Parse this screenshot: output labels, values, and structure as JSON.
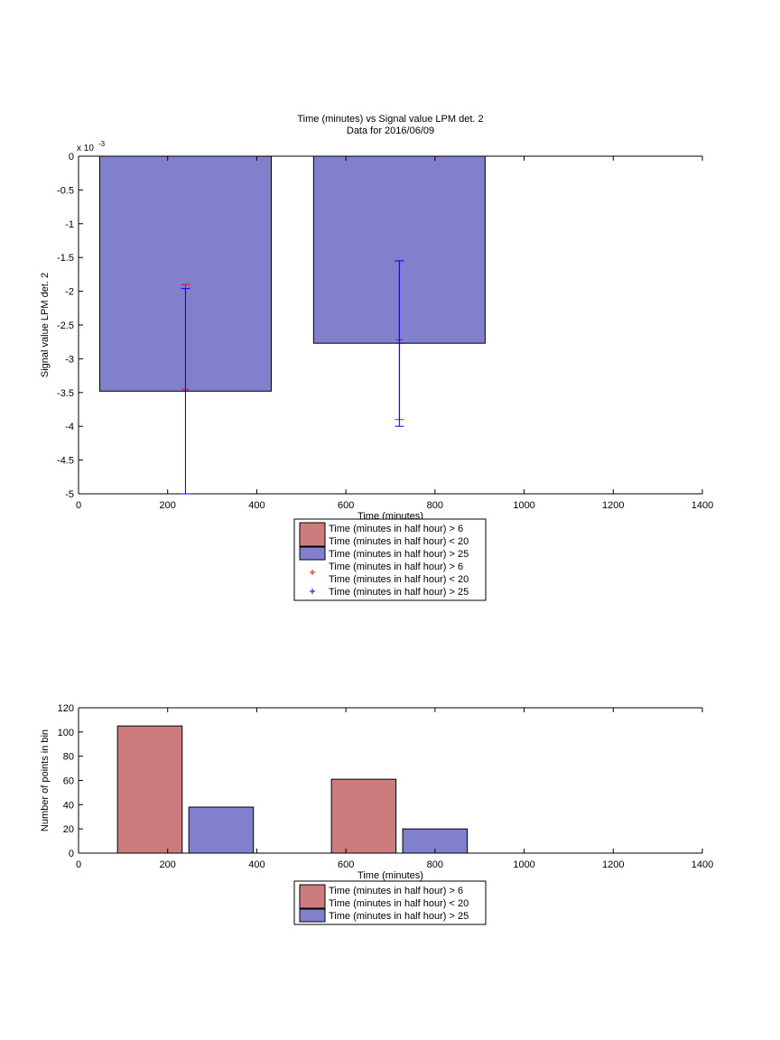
{
  "chart_data": [
    {
      "type": "bar",
      "title": "Time (minutes) vs Signal value LPM det. 2",
      "subtitle": "Data for 2016/06/09",
      "xlabel": "Time (minutes)",
      "ylabel": "Signal value LPM det. 2",
      "y_exponent_label": "x 10",
      "y_exponent_power": "-3",
      "xlim": [
        0,
        1400
      ],
      "ylim": [
        -0.005,
        0
      ],
      "x_ticks": [
        0,
        200,
        400,
        600,
        800,
        1000,
        1200,
        1400
      ],
      "y_ticks": [
        0,
        -0.0005,
        -0.001,
        -0.0015,
        -0.002,
        -0.0025,
        -0.003,
        -0.0035,
        -0.004,
        -0.0045,
        -0.005
      ],
      "y_tick_labels": [
        "0",
        "-0.5",
        "-1",
        "-1.5",
        "-2",
        "-2.5",
        "-3",
        "-3.5",
        "-4",
        "-4.5",
        "-5"
      ],
      "grid": false,
      "legend_position": "bottom-center",
      "series": [
        {
          "name": "Time (minutes in half hour) > 6\nTime (minutes in half hour) < 20",
          "color": "#cc7c7c",
          "x": [],
          "values": []
        },
        {
          "name": "Time (minutes in half hour) > 25",
          "color": "#8080cc",
          "x": [
            240,
            720
          ],
          "values": [
            -0.00348,
            -0.00277
          ],
          "bar_width": 385
        }
      ],
      "errorbars": [
        {
          "name": "Time (minutes in half hour) > 6\nTime (minutes in half hour) < 20",
          "color": "#ff0000",
          "x": [
            240,
            720
          ],
          "center": [
            -0.00345,
            -0.00272
          ],
          "low": [
            -0.005,
            -0.0039
          ],
          "high": [
            -0.0019,
            -0.00155
          ]
        },
        {
          "name": "Time (minutes in half hour) > 25",
          "color": "#0000ff",
          "x": [
            240,
            720
          ],
          "center": [
            -0.00348,
            -0.00277
          ],
          "low": [
            -0.005,
            -0.004
          ],
          "high": [
            -0.00196,
            -0.00155
          ]
        }
      ],
      "legend": [
        {
          "type": "bar",
          "color": "#cc7c7c",
          "lines": [
            "Time (minutes in half hour) > 6",
            "Time (minutes in half hour) < 20"
          ]
        },
        {
          "type": "bar",
          "color": "#8080cc",
          "lines": [
            "Time (minutes in half hour) > 25"
          ]
        },
        {
          "type": "marker",
          "color": "#ff0000",
          "lines": [
            "Time (minutes in half hour) > 6",
            "Time (minutes in half hour) < 20"
          ]
        },
        {
          "type": "marker",
          "color": "#0000ff",
          "lines": [
            "Time (minutes in half hour) > 25"
          ]
        }
      ]
    },
    {
      "type": "bar",
      "title": "",
      "xlabel": "Time (minutes)",
      "ylabel": "Number of points in bin",
      "xlim": [
        0,
        1400
      ],
      "ylim": [
        0,
        120
      ],
      "x_ticks": [
        0,
        200,
        400,
        600,
        800,
        1000,
        1200,
        1400
      ],
      "y_ticks": [
        0,
        20,
        40,
        60,
        80,
        100,
        120
      ],
      "grid": false,
      "legend_position": "bottom-center",
      "series": [
        {
          "name": "Time (minutes in half hour) > 6\nTime (minutes in half hour) < 20",
          "color": "#cc7c7c",
          "x": [
            160,
            640
          ],
          "values": [
            105,
            61
          ],
          "bar_width": 145
        },
        {
          "name": "Time (minutes in half hour) > 25",
          "color": "#8080cc",
          "x": [
            320,
            800
          ],
          "values": [
            38,
            20
          ],
          "bar_width": 145
        }
      ],
      "legend": [
        {
          "type": "bar",
          "color": "#cc7c7c",
          "lines": [
            "Time (minutes in half hour) > 6",
            "Time (minutes in half hour) < 20"
          ]
        },
        {
          "type": "bar",
          "color": "#8080cc",
          "lines": [
            "Time (minutes in half hour) > 25"
          ]
        }
      ]
    }
  ]
}
